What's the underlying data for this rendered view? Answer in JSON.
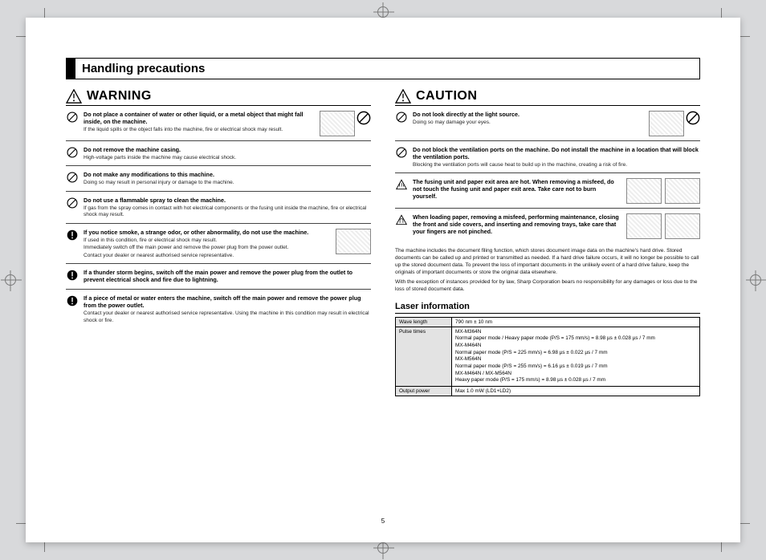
{
  "section_title": "Handling precautions",
  "page_number": "5",
  "warning": {
    "heading": "WARNING",
    "items": [
      {
        "icon": "prohibit",
        "title": "Do not place a container of water or other liquid, or a metal object that might fall inside, on the machine.",
        "texts": [
          "If the liquid spills or the object falls into the machine, fire or electrical shock may result."
        ],
        "illus": true,
        "illus_prohibit": true
      },
      {
        "icon": "prohibit",
        "title": "Do not remove the machine casing.",
        "texts": [
          "High-voltage parts inside the machine may cause electrical shock."
        ]
      },
      {
        "icon": "prohibit",
        "title": "Do not make any modifications to this machine.",
        "texts": [
          "Doing so may result in personal injury or damage to the machine."
        ]
      },
      {
        "icon": "prohibit",
        "title": "Do not use a flammable spray to clean the machine.",
        "texts": [
          "If gas from the spray comes in contact with hot electrical components or the fusing unit inside the machine, fire or electrical shock may result."
        ]
      },
      {
        "icon": "excl",
        "title": "If you notice smoke, a strange odor, or other abnormality, do not use the machine.",
        "texts": [
          "If used in this condition, fire or electrical shock may result.",
          "Immediately switch off the main power and remove the power plug from the power outlet.",
          "Contact your dealer or nearest authorised service representative."
        ],
        "illus": true
      },
      {
        "icon": "excl",
        "title": "If a thunder storm begins, switch off the main power and remove the power plug from the outlet to prevent electrical shock and fire due to lightning.",
        "texts": []
      },
      {
        "icon": "excl",
        "title": "If a piece of metal or water enters the machine, switch off the main power and remove the power plug from the power outlet.",
        "texts": [
          "Contact your dealer or nearest authorised service representative. Using the machine in this condition may result in electrical shock or fire."
        ]
      }
    ]
  },
  "caution": {
    "heading": "CAUTION",
    "items": [
      {
        "icon": "prohibit",
        "title": "Do not look directly at the light source.",
        "texts": [
          "Doing so may damage your eyes."
        ],
        "illus": true,
        "illus_prohibit": true
      },
      {
        "icon": "prohibit",
        "title": "Do not block the ventilation ports on the machine. Do not install the machine in a location that will block the ventilation ports.",
        "texts": [
          "Blocking the ventilation ports will cause heat to build up in the machine, creating a risk of fire."
        ]
      },
      {
        "icon": "hot",
        "title": "The fusing unit and paper exit area are hot. When removing a misfeed, do not touch the fusing unit and paper exit area. Take care not to burn yourself.",
        "texts": [],
        "illus": true,
        "illus_double": true
      },
      {
        "icon": "pinch",
        "title": "When loading paper, removing a misfeed, performing maintenance, closing the front and side covers, and inserting and removing trays, take care that your fingers are not pinched.",
        "texts": [],
        "illus": true,
        "illus_double": true
      }
    ],
    "paragraphs": [
      "The machine includes the document filing function, which stores document image data on the machine's hard drive. Stored documents can be called up and printed or transmitted as needed. If a hard drive failure occurs, it will no longer be possible to call up the stored document data. To prevent the loss of important documents in the unlikely event of a hard drive failure, keep the originals of important documents or store the original data elsewhere.",
      "With the exception of instances provided for by law, Sharp Corporation bears no responsibility for any damages or loss due to the loss of stored document data."
    ]
  },
  "laser": {
    "heading": "Laser information",
    "rows": {
      "wave_length_label": "Wave length",
      "wave_length_value": "790 nm ± 10 nm",
      "pulse_label": "Pulse times",
      "pulse_lines": [
        "MX-M364N",
        "Normal paper mode / Heavy paper mode (P/S = 175 mm/s) = 8.98 µs ± 0.028 µs / 7 mm",
        "MX-M464N",
        "Normal paper mode (P/S = 225 mm/s) = 6.98 µs ± 0.022 µs / 7 mm",
        "MX-M564N",
        "Normal paper mode (P/S = 255 mm/s) = 6.16 µs ± 0.019 µs / 7 mm",
        "MX-M464N / MX-M564N",
        "Heavy paper mode (P/S = 175 mm/s) = 8.98 µs ± 0.028 µs / 7 mm"
      ],
      "output_label": "Output power",
      "output_value": "Max 1.0 mW (LD1+LD2)"
    }
  }
}
